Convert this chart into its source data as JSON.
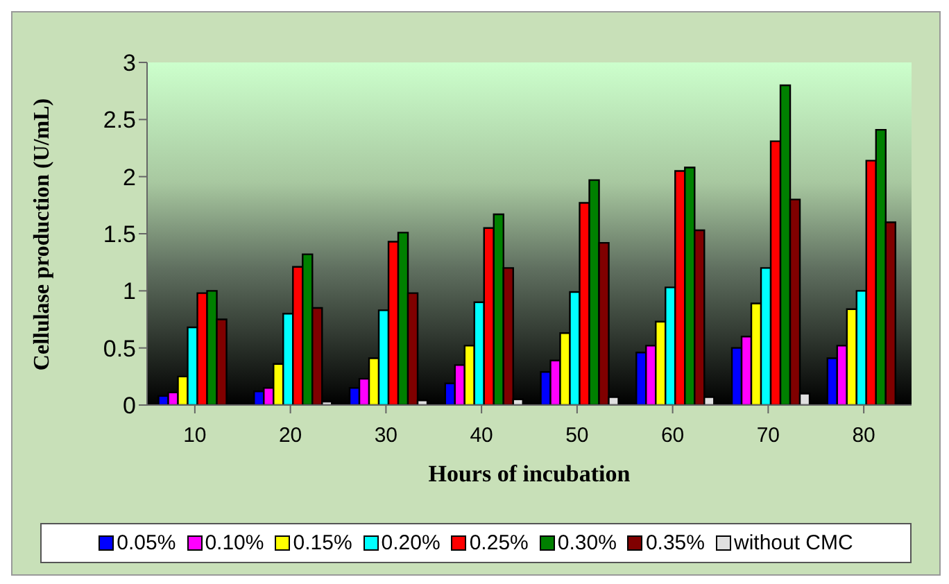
{
  "chart_data": {
    "type": "bar",
    "xlabel": "Hours of incubation",
    "ylabel": "Cellulase production (U/mL)",
    "categories": [
      "10",
      "20",
      "30",
      "40",
      "50",
      "60",
      "70",
      "80"
    ],
    "series": [
      {
        "name": "0.05%",
        "color": "#0000ff",
        "values": [
          0.08,
          0.12,
          0.15,
          0.19,
          0.29,
          0.46,
          0.5,
          0.41
        ]
      },
      {
        "name": "0.10%",
        "color": "#ff00ff",
        "values": [
          0.11,
          0.15,
          0.23,
          0.35,
          0.39,
          0.52,
          0.6,
          0.52
        ]
      },
      {
        "name": "0.15%",
        "color": "#ffff00",
        "values": [
          0.25,
          0.36,
          0.41,
          0.52,
          0.63,
          0.73,
          0.89,
          0.84
        ]
      },
      {
        "name": "0.20%",
        "color": "#00ffff",
        "values": [
          0.68,
          0.8,
          0.83,
          0.9,
          0.99,
          1.03,
          1.2,
          1.0
        ]
      },
      {
        "name": "0.25%",
        "color": "#ff0000",
        "values": [
          0.98,
          1.21,
          1.43,
          1.55,
          1.77,
          2.05,
          2.31,
          2.14
        ]
      },
      {
        "name": "0.30%",
        "color": "#008000",
        "values": [
          1.0,
          1.32,
          1.51,
          1.67,
          1.97,
          2.08,
          2.8,
          2.41
        ]
      },
      {
        "name": "0.35%",
        "color": "#800000",
        "values": [
          0.75,
          0.85,
          0.98,
          1.2,
          1.42,
          1.53,
          1.8,
          1.6
        ]
      },
      {
        "name": "without CMC",
        "color": "#e0e0e0",
        "values": [
          0,
          0.03,
          0.04,
          0.05,
          0.07,
          0.07,
          0.1,
          0
        ]
      }
    ],
    "ylim": [
      0,
      3
    ],
    "yticks": [
      0,
      0.5,
      1,
      1.5,
      2,
      2.5,
      3
    ],
    "grid": false,
    "legend": "bottom"
  }
}
